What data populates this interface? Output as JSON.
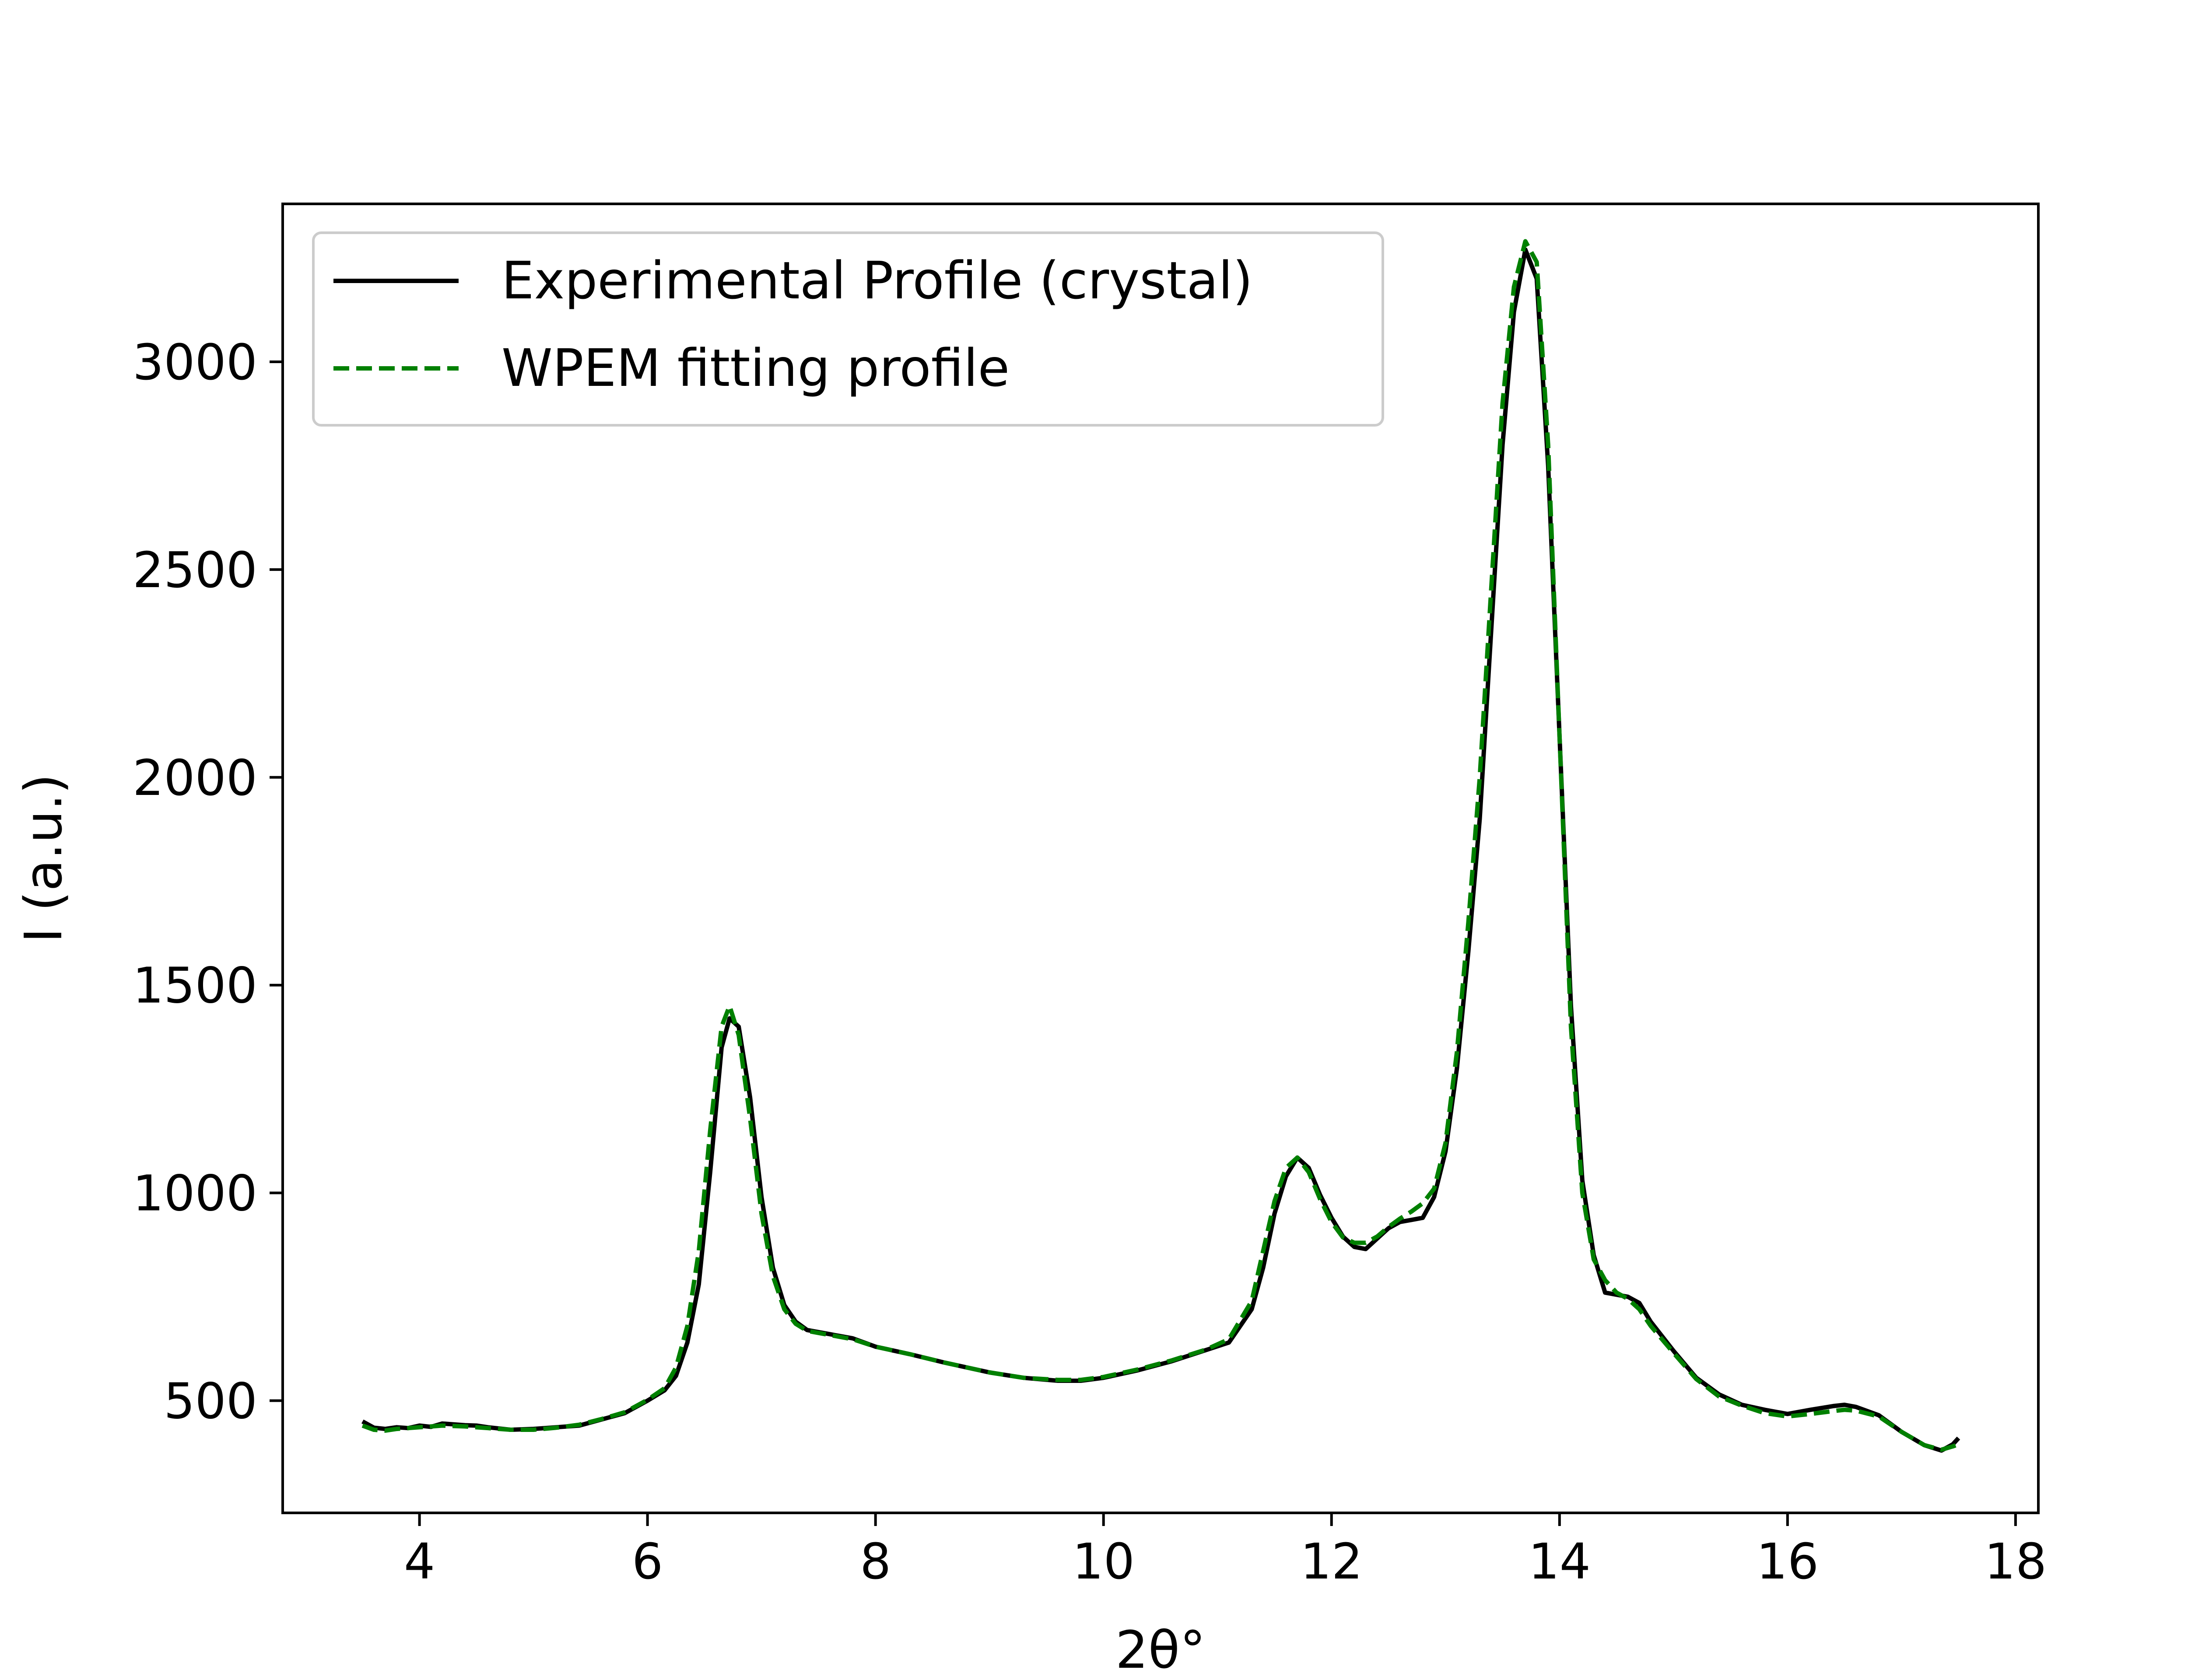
{
  "chart_data": {
    "type": "line",
    "title": "",
    "xlabel": "2θ°",
    "ylabel": "I (a.u.)",
    "xlim": [
      2.8,
      18.2
    ],
    "ylim": [
      230,
      3380
    ],
    "xticks": [
      4,
      6,
      8,
      10,
      12,
      14,
      16,
      18
    ],
    "yticks": [
      500,
      1000,
      1500,
      2000,
      2500,
      3000
    ],
    "xtick_labels": [
      "4",
      "6",
      "8",
      "10",
      "12",
      "14",
      "16",
      "18"
    ],
    "ytick_labels": [
      "500",
      "1000",
      "1500",
      "2000",
      "2500",
      "3000"
    ],
    "legend": "top-left",
    "grid": false,
    "series": [
      {
        "name": "Experimental Profile (crystal)",
        "color": "#000000",
        "style": "solid",
        "points": [
          [
            3.5,
            450
          ],
          [
            3.6,
            435
          ],
          [
            3.7,
            432
          ],
          [
            3.8,
            436
          ],
          [
            3.9,
            434
          ],
          [
            4.0,
            440
          ],
          [
            4.1,
            437
          ],
          [
            4.2,
            445
          ],
          [
            4.3,
            443
          ],
          [
            4.4,
            441
          ],
          [
            4.5,
            440
          ],
          [
            4.6,
            436
          ],
          [
            4.8,
            430
          ],
          [
            5.0,
            432
          ],
          [
            5.2,
            436
          ],
          [
            5.4,
            440
          ],
          [
            5.6,
            455
          ],
          [
            5.8,
            470
          ],
          [
            6.0,
            500
          ],
          [
            6.15,
            525
          ],
          [
            6.25,
            560
          ],
          [
            6.35,
            640
          ],
          [
            6.45,
            780
          ],
          [
            6.55,
            1050
          ],
          [
            6.65,
            1350
          ],
          [
            6.72,
            1420
          ],
          [
            6.8,
            1400
          ],
          [
            6.9,
            1230
          ],
          [
            7.0,
            990
          ],
          [
            7.1,
            820
          ],
          [
            7.2,
            730
          ],
          [
            7.3,
            690
          ],
          [
            7.4,
            670
          ],
          [
            7.6,
            660
          ],
          [
            7.8,
            650
          ],
          [
            8.0,
            630
          ],
          [
            8.3,
            612
          ],
          [
            8.6,
            592
          ],
          [
            9.0,
            568
          ],
          [
            9.3,
            555
          ],
          [
            9.6,
            548
          ],
          [
            9.8,
            548
          ],
          [
            10.0,
            555
          ],
          [
            10.3,
            573
          ],
          [
            10.6,
            595
          ],
          [
            10.9,
            622
          ],
          [
            11.1,
            640
          ],
          [
            11.3,
            720
          ],
          [
            11.4,
            820
          ],
          [
            11.5,
            950
          ],
          [
            11.6,
            1040
          ],
          [
            11.7,
            1085
          ],
          [
            11.8,
            1060
          ],
          [
            11.9,
            995
          ],
          [
            12.0,
            940
          ],
          [
            12.1,
            895
          ],
          [
            12.2,
            870
          ],
          [
            12.3,
            865
          ],
          [
            12.4,
            890
          ],
          [
            12.5,
            915
          ],
          [
            12.6,
            930
          ],
          [
            12.7,
            935
          ],
          [
            12.8,
            940
          ],
          [
            12.9,
            990
          ],
          [
            13.0,
            1100
          ],
          [
            13.1,
            1300
          ],
          [
            13.2,
            1580
          ],
          [
            13.3,
            1900
          ],
          [
            13.4,
            2350
          ],
          [
            13.5,
            2800
          ],
          [
            13.6,
            3120
          ],
          [
            13.7,
            3270
          ],
          [
            13.8,
            3200
          ],
          [
            13.9,
            2750
          ],
          [
            14.0,
            2100
          ],
          [
            14.1,
            1450
          ],
          [
            14.2,
            1030
          ],
          [
            14.3,
            850
          ],
          [
            14.4,
            760
          ],
          [
            14.5,
            755
          ],
          [
            14.6,
            750
          ],
          [
            14.7,
            735
          ],
          [
            14.8,
            690
          ],
          [
            15.0,
            620
          ],
          [
            15.2,
            555
          ],
          [
            15.4,
            515
          ],
          [
            15.6,
            490
          ],
          [
            15.8,
            478
          ],
          [
            16.0,
            468
          ],
          [
            16.2,
            478
          ],
          [
            16.4,
            487
          ],
          [
            16.5,
            490
          ],
          [
            16.6,
            485
          ],
          [
            16.8,
            465
          ],
          [
            17.0,
            425
          ],
          [
            17.2,
            393
          ],
          [
            17.35,
            380
          ],
          [
            17.45,
            395
          ],
          [
            17.5,
            410
          ]
        ]
      },
      {
        "name": "WPEM fitting profile",
        "color": "#008000",
        "style": "dashed",
        "points": [
          [
            3.5,
            440
          ],
          [
            3.6,
            430
          ],
          [
            3.7,
            428
          ],
          [
            3.8,
            432
          ],
          [
            3.9,
            434
          ],
          [
            4.0,
            436
          ],
          [
            4.2,
            440
          ],
          [
            4.4,
            438
          ],
          [
            4.6,
            434
          ],
          [
            4.8,
            430
          ],
          [
            5.0,
            430
          ],
          [
            5.2,
            435
          ],
          [
            5.4,
            442
          ],
          [
            5.6,
            456
          ],
          [
            5.8,
            472
          ],
          [
            6.0,
            502
          ],
          [
            6.15,
            530
          ],
          [
            6.25,
            580
          ],
          [
            6.35,
            680
          ],
          [
            6.45,
            860
          ],
          [
            6.55,
            1150
          ],
          [
            6.65,
            1400
          ],
          [
            6.72,
            1450
          ],
          [
            6.8,
            1380
          ],
          [
            6.9,
            1180
          ],
          [
            7.0,
            950
          ],
          [
            7.1,
            800
          ],
          [
            7.2,
            720
          ],
          [
            7.3,
            685
          ],
          [
            7.4,
            668
          ],
          [
            7.6,
            658
          ],
          [
            7.8,
            648
          ],
          [
            8.0,
            630
          ],
          [
            8.3,
            612
          ],
          [
            8.6,
            592
          ],
          [
            9.0,
            568
          ],
          [
            9.3,
            555
          ],
          [
            9.6,
            550
          ],
          [
            9.8,
            550
          ],
          [
            10.0,
            557
          ],
          [
            10.3,
            575
          ],
          [
            10.6,
            597
          ],
          [
            10.9,
            623
          ],
          [
            11.1,
            648
          ],
          [
            11.3,
            740
          ],
          [
            11.4,
            860
          ],
          [
            11.5,
            980
          ],
          [
            11.6,
            1060
          ],
          [
            11.7,
            1085
          ],
          [
            11.8,
            1050
          ],
          [
            11.9,
            985
          ],
          [
            12.0,
            930
          ],
          [
            12.1,
            893
          ],
          [
            12.2,
            880
          ],
          [
            12.3,
            880
          ],
          [
            12.4,
            895
          ],
          [
            12.5,
            918
          ],
          [
            12.6,
            938
          ],
          [
            12.7,
            955
          ],
          [
            12.8,
            975
          ],
          [
            12.9,
            1010
          ],
          [
            13.0,
            1120
          ],
          [
            13.1,
            1340
          ],
          [
            13.2,
            1650
          ],
          [
            13.3,
            2000
          ],
          [
            13.4,
            2450
          ],
          [
            13.5,
            2900
          ],
          [
            13.6,
            3180
          ],
          [
            13.7,
            3290
          ],
          [
            13.8,
            3240
          ],
          [
            13.9,
            2800
          ],
          [
            14.0,
            2100
          ],
          [
            14.1,
            1400
          ],
          [
            14.2,
            1000
          ],
          [
            14.3,
            840
          ],
          [
            14.4,
            790
          ],
          [
            14.5,
            760
          ],
          [
            14.6,
            745
          ],
          [
            14.7,
            720
          ],
          [
            14.8,
            680
          ],
          [
            15.0,
            615
          ],
          [
            15.2,
            552
          ],
          [
            15.4,
            510
          ],
          [
            15.6,
            488
          ],
          [
            15.8,
            470
          ],
          [
            16.0,
            462
          ],
          [
            16.2,
            468
          ],
          [
            16.4,
            475
          ],
          [
            16.5,
            478
          ],
          [
            16.6,
            476
          ],
          [
            16.8,
            462
          ],
          [
            17.0,
            425
          ],
          [
            17.2,
            393
          ],
          [
            17.35,
            382
          ],
          [
            17.45,
            390
          ],
          [
            17.5,
            395
          ]
        ]
      }
    ]
  }
}
